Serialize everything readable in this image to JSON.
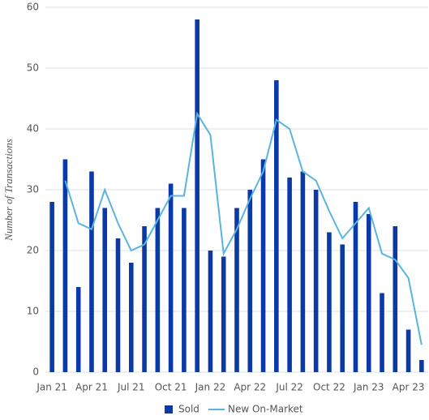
{
  "chart_data": {
    "type": "bar-line",
    "y_axis_label": "Number of Transactions",
    "categories": [
      "Jan 21",
      null,
      null,
      "Apr 21",
      null,
      null,
      "Jul 21",
      null,
      null,
      "Oct 21",
      null,
      null,
      "Jan 22",
      null,
      null,
      "Apr 22",
      null,
      null,
      "Jul 22",
      null,
      null,
      "Oct 22",
      null,
      null,
      "Jan 23",
      null,
      null,
      "Apr 23",
      null
    ],
    "series": [
      {
        "name": "Sold",
        "type": "bar",
        "color": "#0b3aa6",
        "values": [
          28,
          35,
          14,
          33,
          27,
          22,
          18,
          24,
          27,
          31,
          27,
          58,
          20,
          19,
          27,
          30,
          35,
          48,
          32,
          33,
          30,
          23,
          21,
          28,
          26,
          13,
          24,
          7,
          2
        ]
      },
      {
        "name": "New On-Market",
        "type": "line",
        "color": "#5ab4e0",
        "values": [
          null,
          31.5,
          24.5,
          23.5,
          30,
          24.5,
          20,
          21,
          25,
          29,
          29,
          42.5,
          39,
          19.5,
          23.5,
          28.5,
          33,
          41.5,
          40,
          33,
          31.5,
          26.5,
          22,
          24.5,
          27,
          19.5,
          18.5,
          15.5,
          4.5
        ]
      }
    ],
    "ylim": [
      0,
      60
    ],
    "yticks": [
      0,
      10,
      20,
      30,
      40,
      50,
      60
    ],
    "grid": true
  }
}
